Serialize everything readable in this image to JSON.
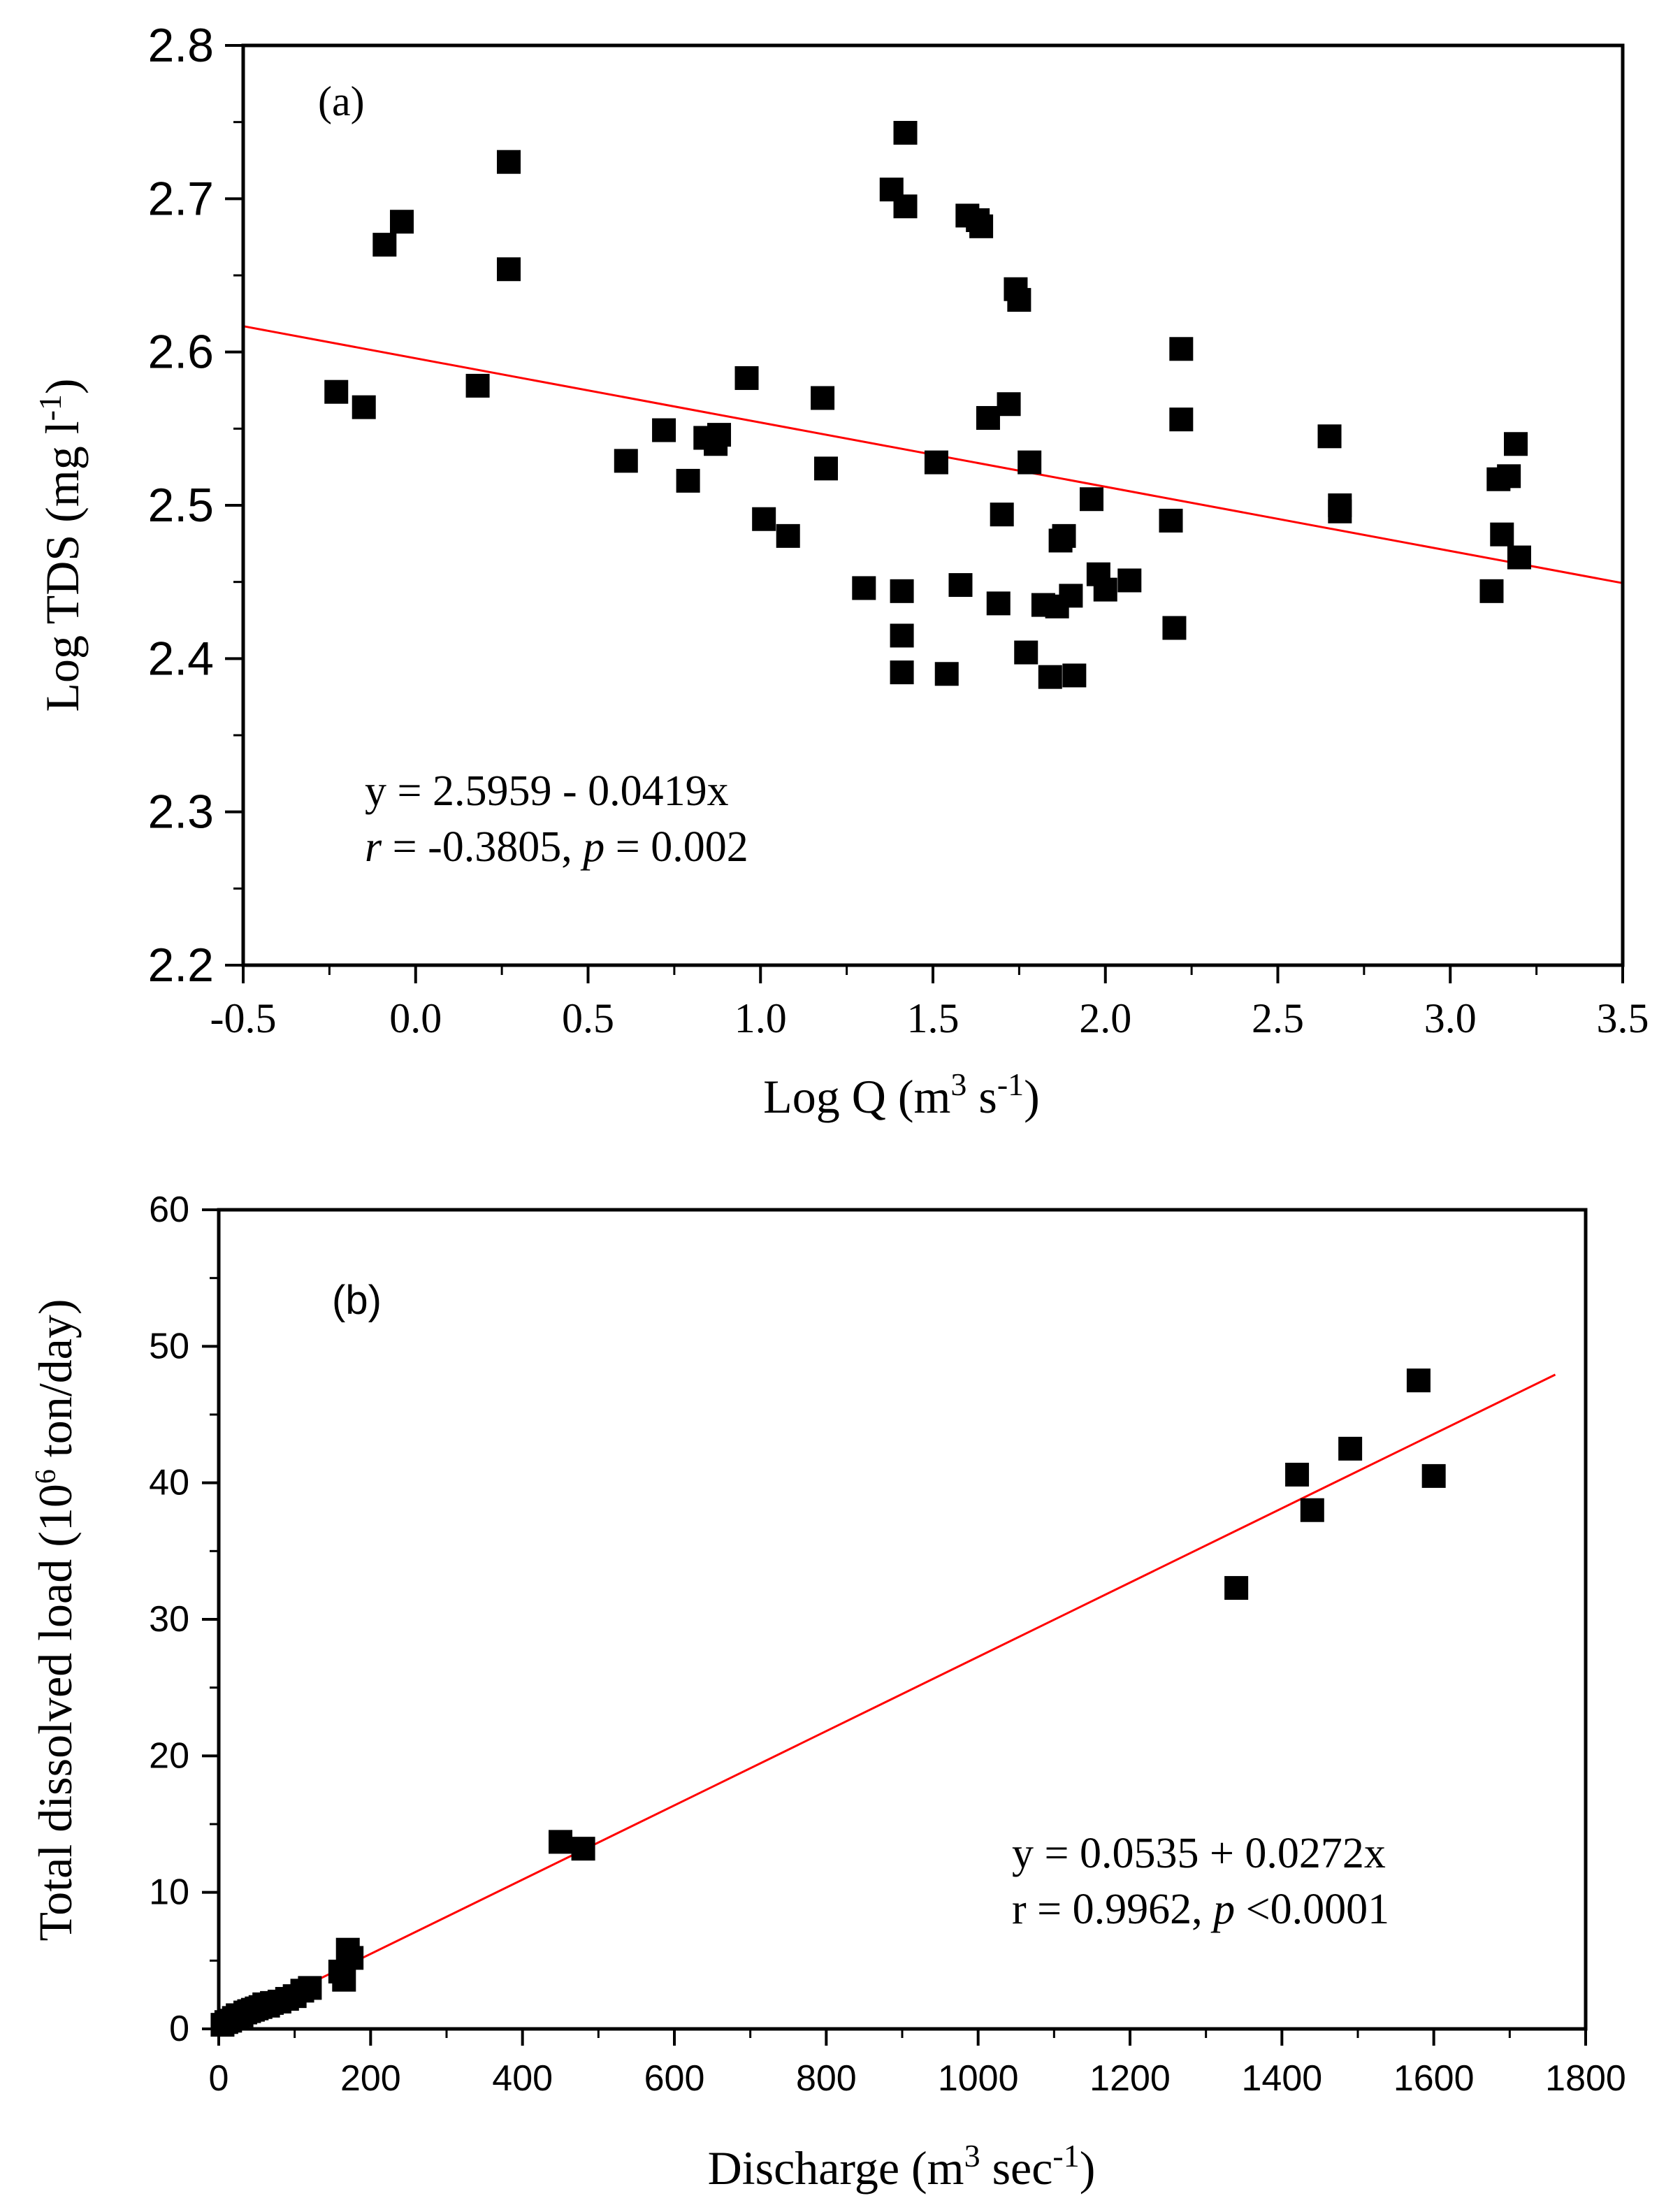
{
  "chart_data": [
    {
      "type": "scatter",
      "panel_label": "(a)",
      "xlabel": {
        "main": "Log Q (m",
        "sup": "3",
        "mid": " s",
        "sup2": "-1",
        "end": ")"
      },
      "ylabel": {
        "main": "Log TDS (mg l",
        "sup": "-1",
        "end": ")"
      },
      "xlim": [
        -0.5,
        3.5
      ],
      "ylim": [
        2.2,
        2.8
      ],
      "xticks": [
        "-0.5",
        "0.0",
        "0.5",
        "1.0",
        "1.5",
        "2.0",
        "2.5",
        "3.0",
        "3.5"
      ],
      "yticks": [
        "2.2",
        "2.3",
        "2.4",
        "2.5",
        "2.6",
        "2.7",
        "2.8"
      ],
      "annotation": {
        "line1": "y = 2.5959 - 0.0419x",
        "line2_r": "r",
        "line2_a": " = -0.3805, ",
        "line2_p": "p",
        "line2_b": " = 0.002"
      },
      "fit": {
        "intercept": 2.5959,
        "slope": -0.0419,
        "color": "#ff0000"
      },
      "marker_color": "#000000",
      "x": [
        -0.23,
        -0.15,
        -0.09,
        -0.04,
        0.18,
        0.27,
        0.27,
        0.61,
        0.72,
        0.79,
        0.84,
        0.87,
        0.88,
        0.96,
        1.01,
        1.08,
        1.18,
        1.19,
        1.3,
        1.38,
        1.41,
        1.41,
        1.41,
        1.42,
        1.42,
        1.51,
        1.54,
        1.58,
        1.6,
        1.63,
        1.64,
        1.66,
        1.69,
        1.7,
        1.72,
        1.74,
        1.75,
        1.77,
        1.78,
        1.82,
        1.84,
        1.86,
        1.87,
        1.88,
        1.9,
        1.91,
        1.96,
        1.98,
        2.0,
        2.07,
        2.19,
        2.2,
        2.22,
        2.22,
        2.65,
        2.68,
        2.68,
        3.12,
        3.14,
        3.15,
        3.17,
        3.19,
        3.2
      ],
      "y": [
        2.574,
        2.564,
        2.67,
        2.685,
        2.578,
        2.724,
        2.654,
        2.529,
        2.549,
        2.516,
        2.544,
        2.54,
        2.546,
        2.583,
        2.491,
        2.48,
        2.57,
        2.524,
        2.446,
        2.706,
        2.444,
        2.415,
        2.391,
        2.743,
        2.695,
        2.528,
        2.39,
        2.448,
        2.689,
        2.686,
        2.682,
        2.557,
        2.436,
        2.494,
        2.566,
        2.641,
        2.634,
        2.404,
        2.528,
        2.435,
        2.388,
        2.434,
        2.477,
        2.48,
        2.441,
        2.389,
        2.504,
        2.455,
        2.445,
        2.451,
        2.49,
        2.42,
        2.602,
        2.556,
        2.545,
        2.5,
        2.496,
        2.444,
        2.517,
        2.481,
        2.519,
        2.54,
        2.466
      ]
    },
    {
      "type": "scatter",
      "panel_label": "(b)",
      "xlabel": {
        "main": "Discharge (m",
        "sup": "3",
        "mid": " sec",
        "sup2": "-1",
        "end": ")"
      },
      "ylabel": {
        "main": "Total dissolved load (10",
        "sup": "6",
        "end": " ton/day)"
      },
      "xlim": [
        0,
        1800
      ],
      "ylim": [
        0,
        60
      ],
      "xticks": [
        "0",
        "200",
        "400",
        "600",
        "800",
        "1000",
        "1200",
        "1400",
        "1600",
        "1800"
      ],
      "yticks": [
        "0",
        "10",
        "20",
        "30",
        "40",
        "50",
        "60"
      ],
      "annotation": {
        "line1": "y = 0.0535 + 0.0272x",
        "line2_r": "r",
        "line2_a": " = 0.9962, ",
        "line2_p": "p",
        "line2_b": " <0.0001"
      },
      "fit": {
        "intercept": 0.0535,
        "slope": 0.0272,
        "x_end": 1760,
        "color": "#ff0000"
      },
      "marker_color": "#000000",
      "x": [
        5,
        10,
        15,
        20,
        25,
        30,
        35,
        40,
        45,
        50,
        55,
        60,
        65,
        70,
        80,
        90,
        100,
        110,
        120,
        160,
        165,
        170,
        175,
        450,
        480,
        1340,
        1420,
        1440,
        1490,
        1580,
        1600
      ],
      "y": [
        0.3,
        0.5,
        0.6,
        0.8,
        1.0,
        1.0,
        1.2,
        1.3,
        1.4,
        1.5,
        1.6,
        1.8,
        1.7,
        1.9,
        2.0,
        2.2,
        2.4,
        2.8,
        3.0,
        4.2,
        3.6,
        5.8,
        5.2,
        13.7,
        13.2,
        32.3,
        40.6,
        38.0,
        42.5,
        47.5,
        40.5
      ]
    }
  ]
}
